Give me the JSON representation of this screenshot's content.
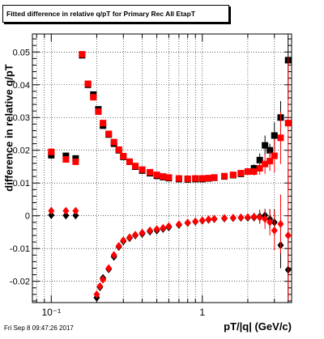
{
  "title": "Fitted difference in relative q/pT for Primary Rec All EtapT",
  "footer": "Fri Sep  8 09:47:26 2017",
  "colors": {
    "series_black": "#000000",
    "series_red": "#ff0000",
    "grid": "#000000"
  },
  "chart_data": {
    "type": "scatter",
    "title": "Fitted difference in relative q/pT for Primary Rec All EtapT",
    "xlabel": "pT/|q| (GeV/c)",
    "ylabel": "difference in relative q/pT",
    "xscale": "log",
    "xlim": [
      0.075,
      3.9
    ],
    "ylim": [
      -0.0265,
      0.0555
    ],
    "grid": true,
    "xticks": [
      {
        "v": 0.1,
        "label": "10⁻¹"
      },
      {
        "v": 1,
        "label": "1"
      }
    ],
    "yticks": [
      {
        "v": -0.02,
        "label": "-0.02"
      },
      {
        "v": -0.01,
        "label": "-0.01"
      },
      {
        "v": 0,
        "label": "0"
      },
      {
        "v": 0.01,
        "label": "0.01"
      },
      {
        "v": 0.02,
        "label": "0.02"
      },
      {
        "v": 0.03,
        "label": "0.03"
      },
      {
        "v": 0.04,
        "label": "0.04"
      },
      {
        "v": 0.05,
        "label": "0.05"
      }
    ],
    "series": [
      {
        "color": "#000000",
        "marker": "square",
        "x": [
          0.1,
          0.125,
          0.145,
          0.16,
          0.175,
          0.19,
          0.205,
          0.22,
          0.24,
          0.26,
          0.28,
          0.3,
          0.33,
          0.36,
          0.4,
          0.45,
          0.5,
          0.55,
          0.6,
          0.7,
          0.8,
          0.9,
          1.0,
          1.1,
          1.2,
          1.4,
          1.6,
          1.8,
          2.0,
          2.2,
          2.4,
          2.6,
          2.8,
          3.0,
          3.3,
          3.7
        ],
        "y": [
          0.0185,
          0.0183,
          0.0175,
          0.049,
          0.04,
          0.037,
          0.0325,
          0.0275,
          0.0248,
          0.022,
          0.02,
          0.018,
          0.0165,
          0.015,
          0.0138,
          0.013,
          0.0122,
          0.0118,
          0.0115,
          0.0112,
          0.0111,
          0.0112,
          0.0112,
          0.0114,
          0.0116,
          0.012,
          0.0124,
          0.0128,
          0.0135,
          0.0145,
          0.017,
          0.0215,
          0.02,
          0.0245,
          0.03,
          0.0475
        ],
        "yerr": [
          0.0012,
          0.0008,
          0.0008,
          0.0006,
          0.0005,
          0.0004,
          0.0004,
          0.0003,
          0.0003,
          0.0003,
          0.0003,
          0.0003,
          0.0003,
          0.0003,
          0.0003,
          0.0003,
          0.0003,
          0.0003,
          0.0003,
          0.0003,
          0.0003,
          0.0004,
          0.0004,
          0.0004,
          0.0005,
          0.0005,
          0.0006,
          0.0008,
          0.001,
          0.0012,
          0.002,
          0.003,
          0.002,
          0.004,
          0.005,
          0.012
        ]
      },
      {
        "color": "#ff0000",
        "marker": "square",
        "x": [
          0.1,
          0.125,
          0.145,
          0.16,
          0.175,
          0.19,
          0.205,
          0.22,
          0.24,
          0.26,
          0.28,
          0.3,
          0.33,
          0.36,
          0.4,
          0.45,
          0.5,
          0.55,
          0.6,
          0.7,
          0.8,
          0.9,
          1.0,
          1.1,
          1.2,
          1.4,
          1.6,
          1.8,
          2.0,
          2.2,
          2.4,
          2.6,
          2.8,
          3.0,
          3.3,
          3.7
        ],
        "y": [
          0.0195,
          0.0172,
          0.0165,
          0.0493,
          0.0403,
          0.0362,
          0.0318,
          0.0283,
          0.025,
          0.0225,
          0.0202,
          0.0182,
          0.0165,
          0.0152,
          0.0141,
          0.0133,
          0.0125,
          0.012,
          0.0117,
          0.0114,
          0.0113,
          0.0114,
          0.0114,
          0.0115,
          0.0117,
          0.0121,
          0.0125,
          0.013,
          0.0135,
          0.0135,
          0.0145,
          0.0158,
          0.0167,
          0.0183,
          0.0238,
          0.0283
        ],
        "yerr": [
          0.0012,
          0.0008,
          0.0008,
          0.0006,
          0.0005,
          0.0004,
          0.0004,
          0.0003,
          0.0003,
          0.0003,
          0.0003,
          0.0003,
          0.0003,
          0.0003,
          0.0003,
          0.0003,
          0.0003,
          0.0003,
          0.0003,
          0.0003,
          0.0003,
          0.0004,
          0.0004,
          0.0004,
          0.0005,
          0.0005,
          0.0006,
          0.0008,
          0.001,
          0.0012,
          0.002,
          0.003,
          0.003,
          0.005,
          0.008,
          0.02
        ]
      },
      {
        "color": "#000000",
        "marker": "diamond",
        "x": [
          0.1,
          0.125,
          0.145,
          0.2,
          0.21,
          0.22,
          0.24,
          0.26,
          0.28,
          0.3,
          0.33,
          0.36,
          0.4,
          0.45,
          0.5,
          0.55,
          0.6,
          0.7,
          0.8,
          0.9,
          1.0,
          1.1,
          1.2,
          1.4,
          1.6,
          1.8,
          2.0,
          2.2,
          2.4,
          2.6,
          2.8,
          3.0,
          3.3,
          3.7
        ],
        "y": [
          0.0002,
          0.0001,
          0.0001,
          -0.025,
          -0.0218,
          -0.019,
          -0.0163,
          -0.0125,
          -0.0095,
          -0.0078,
          -0.0068,
          -0.006,
          -0.0055,
          -0.0048,
          -0.0045,
          -0.004,
          -0.0035,
          -0.0028,
          -0.0022,
          -0.0018,
          -0.0015,
          -0.0012,
          -0.001,
          -0.0008,
          -0.0007,
          -0.0006,
          -0.0006,
          -0.0005,
          -0.0002,
          0.0001,
          -0.001,
          -0.002,
          -0.009,
          -0.0165
        ],
        "yerr": [
          0.0002,
          0.0001,
          0.0001,
          0.0008,
          0.0006,
          0.0005,
          0.0004,
          0.0004,
          0.0003,
          0.0003,
          0.0003,
          0.0003,
          0.0003,
          0.0003,
          0.0003,
          0.0003,
          0.0003,
          0.0003,
          0.0003,
          0.0004,
          0.0004,
          0.0004,
          0.0005,
          0.0005,
          0.0006,
          0.0008,
          0.001,
          0.0012,
          0.002,
          0.002,
          0.003,
          0.004,
          0.007,
          0.012
        ]
      },
      {
        "color": "#ff0000",
        "marker": "diamond",
        "x": [
          0.1,
          0.125,
          0.145,
          0.2,
          0.21,
          0.22,
          0.24,
          0.26,
          0.28,
          0.3,
          0.33,
          0.36,
          0.4,
          0.45,
          0.5,
          0.55,
          0.6,
          0.7,
          0.8,
          0.9,
          1.0,
          1.1,
          1.2,
          1.4,
          1.6,
          1.8,
          2.0,
          2.2,
          2.4,
          2.6,
          2.8,
          3.0,
          3.3,
          3.7
        ],
        "y": [
          0.0015,
          0.0015,
          0.0015,
          -0.024,
          -0.0215,
          -0.0195,
          -0.016,
          -0.012,
          -0.0092,
          -0.0075,
          -0.0066,
          -0.0058,
          -0.0052,
          -0.0045,
          -0.0041,
          -0.0037,
          -0.0032,
          -0.0026,
          -0.0021,
          -0.0017,
          -0.0014,
          -0.0011,
          -0.0009,
          -0.0007,
          -0.0006,
          -0.0005,
          -0.0004,
          -0.0003,
          -0.0005,
          -0.001,
          -0.002,
          -0.0045,
          -0.0025,
          -0.006
        ],
        "yerr": [
          0.0002,
          0.0001,
          0.0001,
          0.0008,
          0.0006,
          0.0005,
          0.0004,
          0.0004,
          0.0003,
          0.0003,
          0.0003,
          0.0003,
          0.0003,
          0.0003,
          0.0003,
          0.0003,
          0.0003,
          0.0003,
          0.0003,
          0.0004,
          0.0004,
          0.0004,
          0.0005,
          0.0005,
          0.0006,
          0.0008,
          0.001,
          0.0012,
          0.002,
          0.003,
          0.004,
          0.006,
          0.009,
          0.02
        ]
      }
    ]
  }
}
